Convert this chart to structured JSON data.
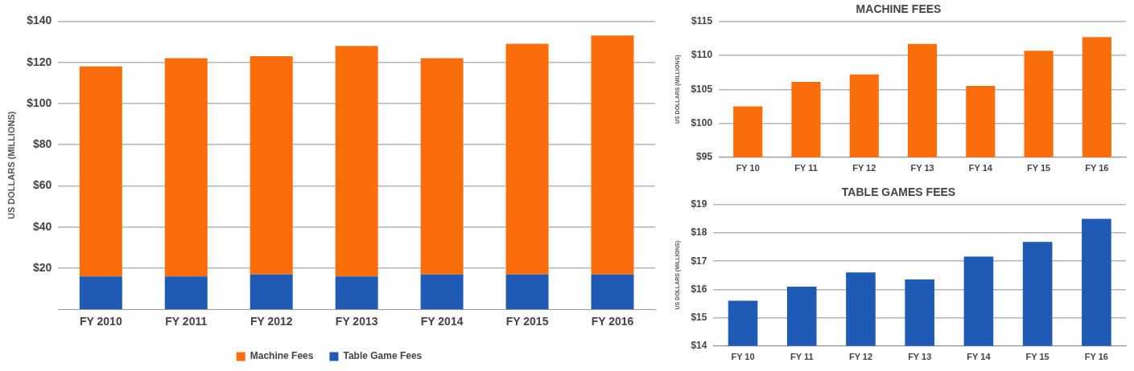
{
  "chart_data": [
    {
      "type": "bar",
      "ylabel": "US DOLLARS (MILLIONS)",
      "categories": [
        "FY 2010",
        "FY 2011",
        "FY 2012",
        "FY 2013",
        "FY 2014",
        "FY 2015",
        "FY 2016"
      ],
      "stacked": true,
      "series": [
        {
          "name": "Table Game Fees",
          "color": "#1f5bb5",
          "values": [
            16,
            16,
            17,
            16,
            17,
            17,
            17
          ]
        },
        {
          "name": "Machine Fees",
          "color": "#f96d0a",
          "values": [
            102,
            106,
            106,
            112,
            105,
            112,
            116
          ]
        }
      ],
      "ylim": [
        0,
        140
      ],
      "yticks": [
        {
          "value": 20,
          "label": "$20"
        },
        {
          "value": 40,
          "label": "$40"
        },
        {
          "value": 60,
          "label": "$60"
        },
        {
          "value": 80,
          "label": "$80"
        },
        {
          "value": 100,
          "label": "$100"
        },
        {
          "value": 120,
          "label": "$120"
        },
        {
          "value": 140,
          "label": "$140"
        }
      ],
      "grid": "y",
      "legend": "bottom"
    },
    {
      "type": "bar",
      "title": "MACHINE FEES",
      "ylabel": "US DOLLARS (MILLIONS)",
      "categories": [
        "FY 10",
        "FY 11",
        "FY 12",
        "FY 13",
        "FY 14",
        "FY 15",
        "FY 16"
      ],
      "series": [
        {
          "color": "#f96d0a",
          "values": [
            102.5,
            106.1,
            107.2,
            111.7,
            105.5,
            110.7,
            112.7
          ]
        }
      ],
      "ylim": [
        95,
        115
      ],
      "yticks": [
        {
          "value": 95,
          "label": "$95"
        },
        {
          "value": 100,
          "label": "$100"
        },
        {
          "value": 105,
          "label": "$105"
        },
        {
          "value": 110,
          "label": "$110"
        },
        {
          "value": 115,
          "label": "$115"
        }
      ],
      "grid": "y"
    },
    {
      "type": "bar",
      "title": "TABLE GAMES FEES",
      "ylabel": "US DOLLARS (MILLIONS)",
      "categories": [
        "FY 10",
        "FY 11",
        "FY 12",
        "FY 13",
        "FY 14",
        "FY 15",
        "FY 16"
      ],
      "series": [
        {
          "color": "#1f5bb5",
          "values": [
            15.6,
            16.1,
            16.6,
            16.35,
            17.16,
            17.68,
            18.5
          ]
        }
      ],
      "ylim": [
        14,
        19
      ],
      "yticks": [
        {
          "value": 14,
          "label": "$14"
        },
        {
          "value": 15,
          "label": "$15"
        },
        {
          "value": 16,
          "label": "$16"
        },
        {
          "value": 17,
          "label": "$17"
        },
        {
          "value": 18,
          "label": "$18"
        },
        {
          "value": 19,
          "label": "$19"
        }
      ],
      "grid": "y"
    }
  ]
}
